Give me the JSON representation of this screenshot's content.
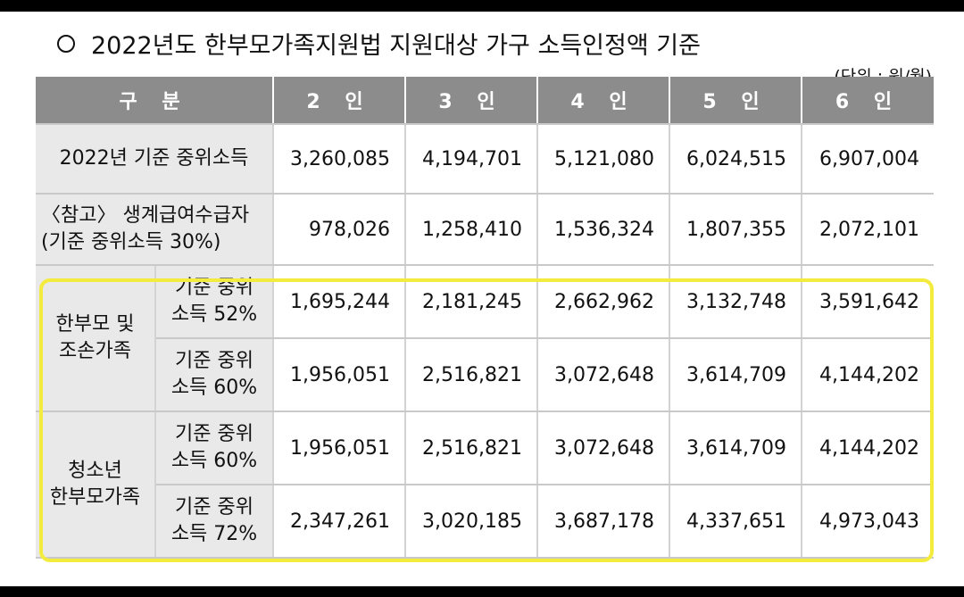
{
  "title": "2022년도 한부모가족지원법 지원대상 가구 소득인정액 기준",
  "unit": "(단위 : 원/월)",
  "header": {
    "category": "구 분",
    "cols": [
      "2 인",
      "3 인",
      "4 인",
      "5 인",
      "6 인"
    ]
  },
  "rows": {
    "median": {
      "label": "2022년 기준 중위소득",
      "values": [
        "3,260,085",
        "4,194,701",
        "5,121,080",
        "6,024,515",
        "6,907,004"
      ]
    },
    "livelihood": {
      "label_line1": "〈참고〉 생계급여수급자",
      "label_line2": "(기준 중위소득 30%)",
      "values": [
        "978,026",
        "1,258,410",
        "1,536,324",
        "1,807,355",
        "2,072,101"
      ]
    },
    "single_parent": {
      "group_line1": "한부모 및",
      "group_line2": "조손가족",
      "sub1_line1": "기준 중위",
      "sub1_line2": "소득 52%",
      "sub1_values": [
        "1,695,244",
        "2,181,245",
        "2,662,962",
        "3,132,748",
        "3,591,642"
      ],
      "sub2_line1": "기준 중위",
      "sub2_line2": "소득 60%",
      "sub2_values": [
        "1,956,051",
        "2,516,821",
        "3,072,648",
        "3,614,709",
        "4,144,202"
      ]
    },
    "youth": {
      "group_line1": "청소년",
      "group_line2": "한부모가족",
      "sub1_line1": "기준 중위",
      "sub1_line2": "소득 60%",
      "sub1_values": [
        "1,956,051",
        "2,516,821",
        "3,072,648",
        "3,614,709",
        "4,144,202"
      ],
      "sub2_line1": "기준 중위",
      "sub2_line2": "소득 72%",
      "sub2_values": [
        "2,347,261",
        "3,020,185",
        "3,687,178",
        "4,337,651",
        "4,973,043"
      ]
    }
  },
  "colors": {
    "header_bg": "#8c8c8c",
    "label_bg": "#e9e9e9",
    "highlight": "#f3ec3e"
  }
}
